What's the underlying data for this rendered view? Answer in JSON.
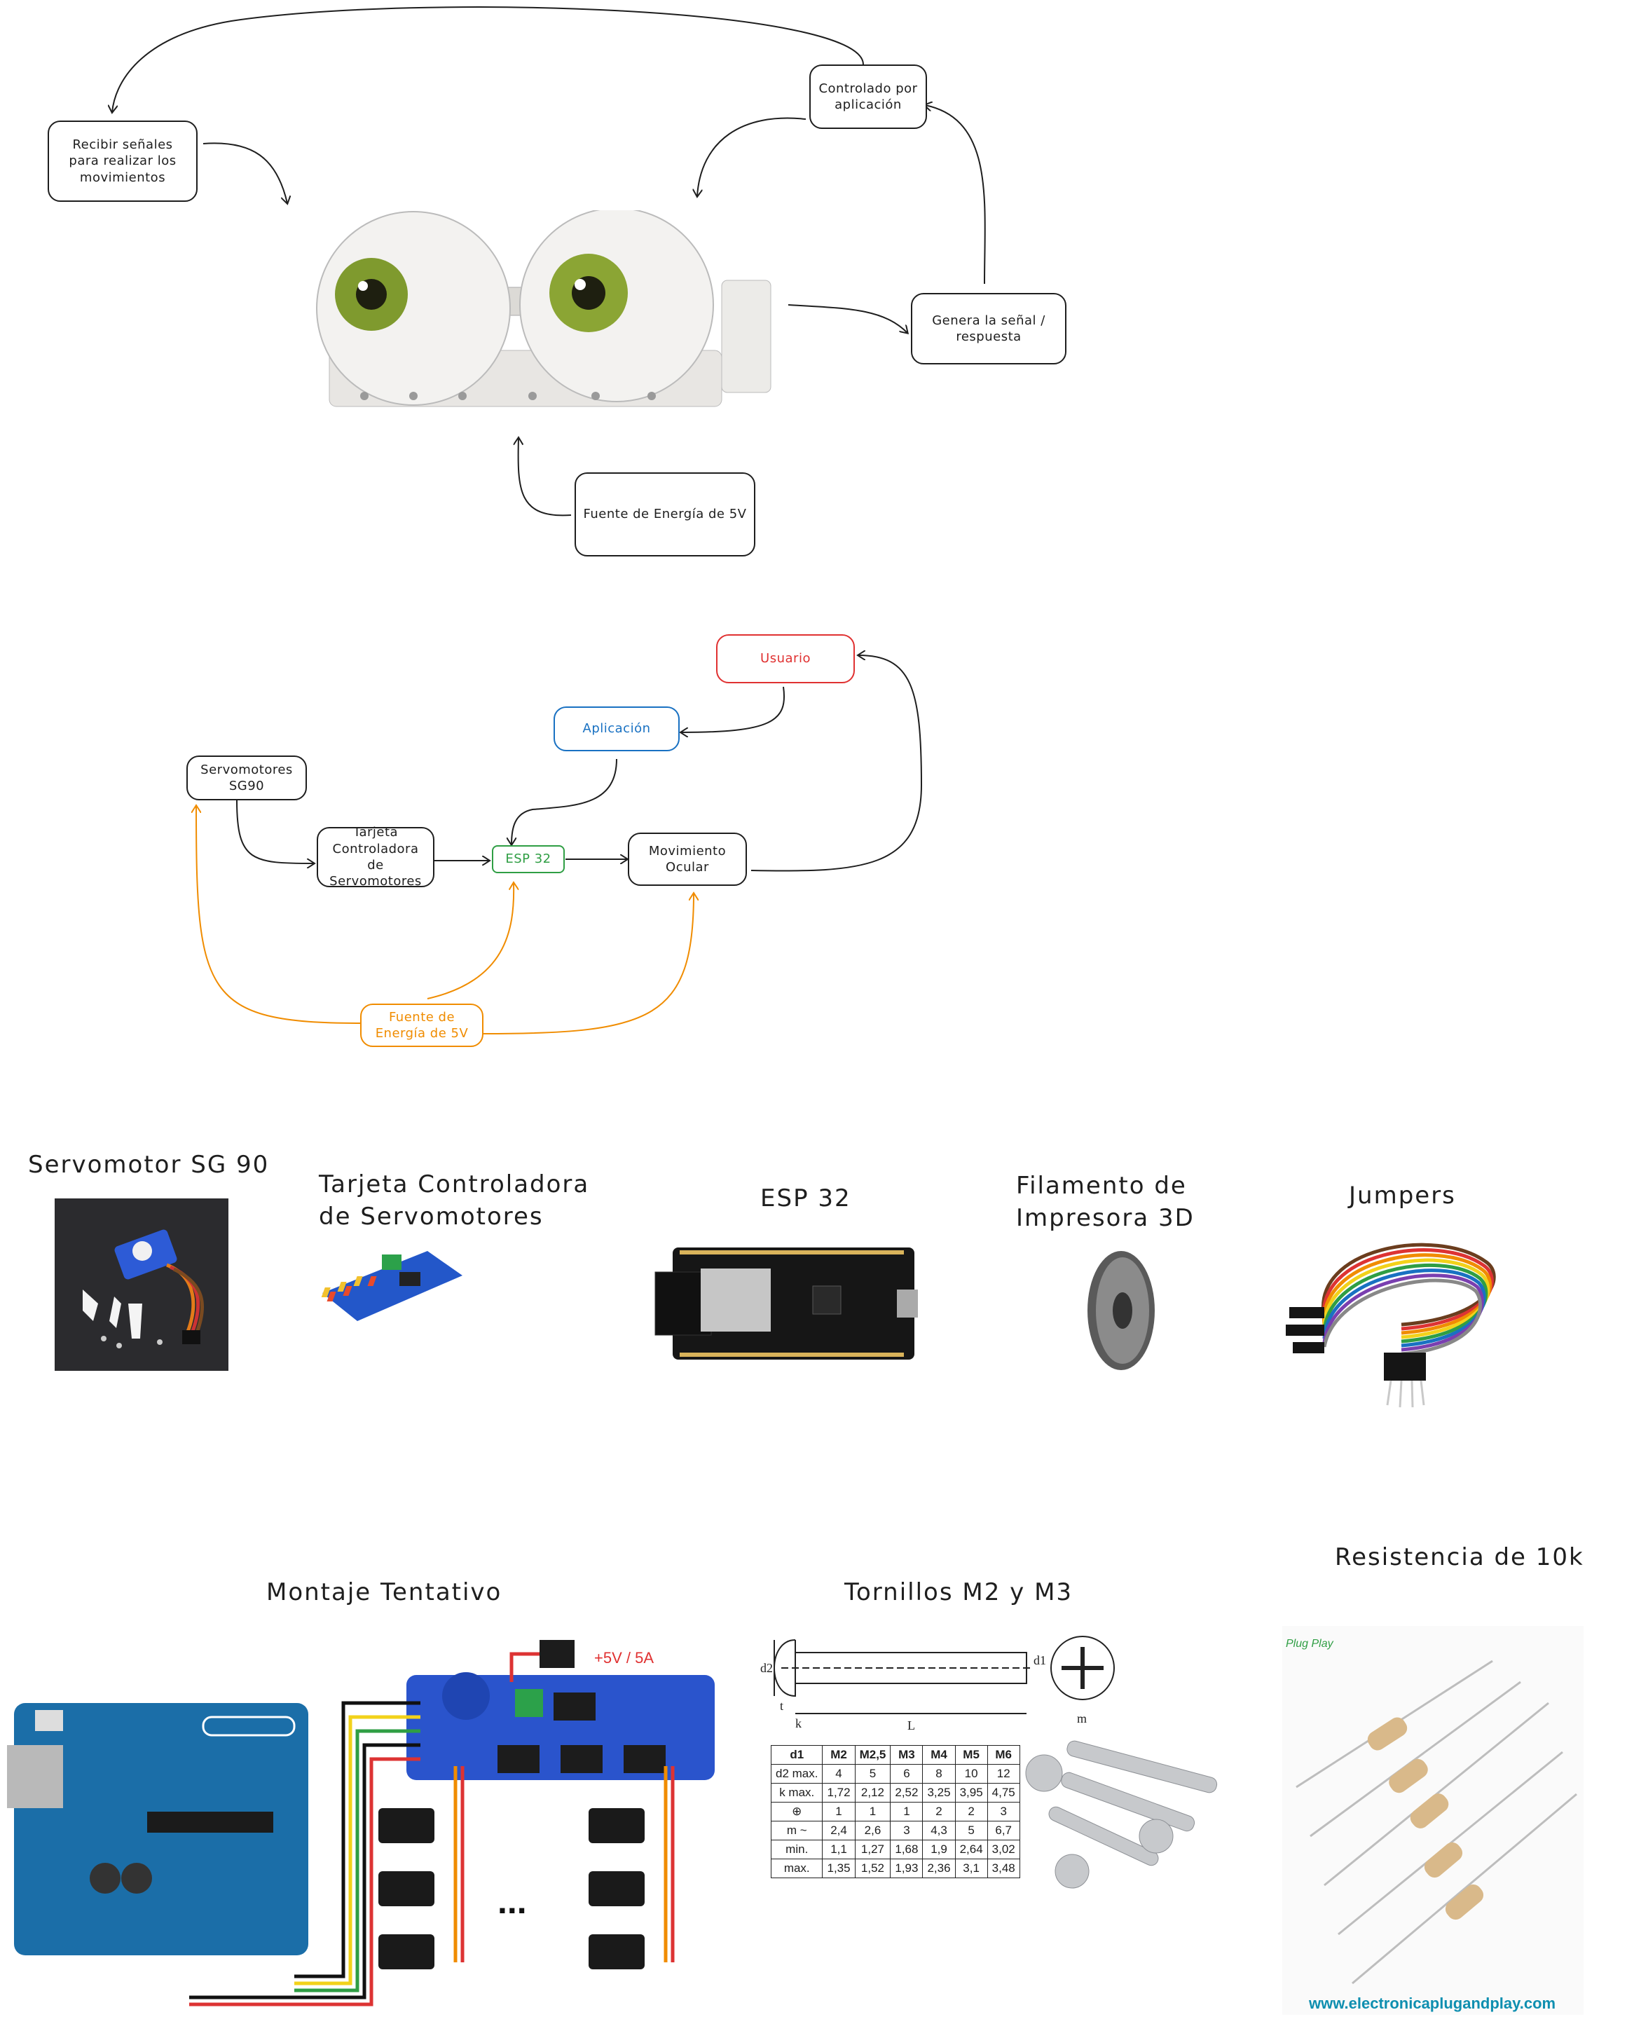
{
  "diagram1": {
    "recibir": "Recibir señales para realizar los movimientos",
    "controlado": "Controlado por aplicación",
    "genera": "Genera la señal / respuesta",
    "fuente": "Fuente de Energía de 5V"
  },
  "diagram2": {
    "usuario": "Usuario",
    "aplicacion": "Aplicación",
    "servomotores": "Servomotores SG90",
    "tarjeta": "Tarjeta Controladora de Servomotores",
    "esp32": "ESP 32",
    "movimiento": "Movimiento Ocular",
    "fuente": "Fuente de Energía de 5V"
  },
  "components": {
    "servo": "Servomotor SG 90",
    "tarjeta": "Tarjeta Controladora de Servomotores",
    "esp32": "ESP 32",
    "filamento": "Filamento de Impresora 3D",
    "jumpers": "Jumpers"
  },
  "bottom": {
    "montaje": "Montaje Tentativo",
    "tornillos": "Tornillos M2 y M3",
    "resistencia": "Resistencia de 10k",
    "power_label": "+5V / 5A",
    "watermark": "www.electronicaplugandplay.com",
    "logo_text": "Plug Play",
    "dots": "..."
  },
  "screw_table": {
    "header": [
      "d1",
      "M2",
      "M2,5",
      "M3",
      "M4",
      "M5",
      "M6"
    ],
    "rows": [
      [
        "d2 max.",
        "4",
        "5",
        "6",
        "8",
        "10",
        "12"
      ],
      [
        "k max.",
        "1,72",
        "2,12",
        "2,52",
        "3,25",
        "3,95",
        "4,75"
      ],
      [
        "",
        "1",
        "1",
        "1",
        "2",
        "2",
        "3"
      ],
      [
        "m ~",
        "2,4",
        "2,6",
        "3",
        "4,3",
        "5",
        "6,7"
      ],
      [
        "min.",
        "1,1",
        "1,27",
        "1,68",
        "1,9",
        "2,64",
        "3,02"
      ],
      [
        "max.",
        "1,35",
        "1,52",
        "1,93",
        "2,36",
        "3,1",
        "3,48"
      ]
    ],
    "drawing_labels": [
      "d2",
      "k",
      "t",
      "L",
      "d1",
      "m"
    ]
  },
  "colors": {
    "red": "#e03131",
    "blue": "#1971c2",
    "green": "#2f9e44",
    "orange": "#f08c00",
    "ink": "#1e1e1e"
  }
}
